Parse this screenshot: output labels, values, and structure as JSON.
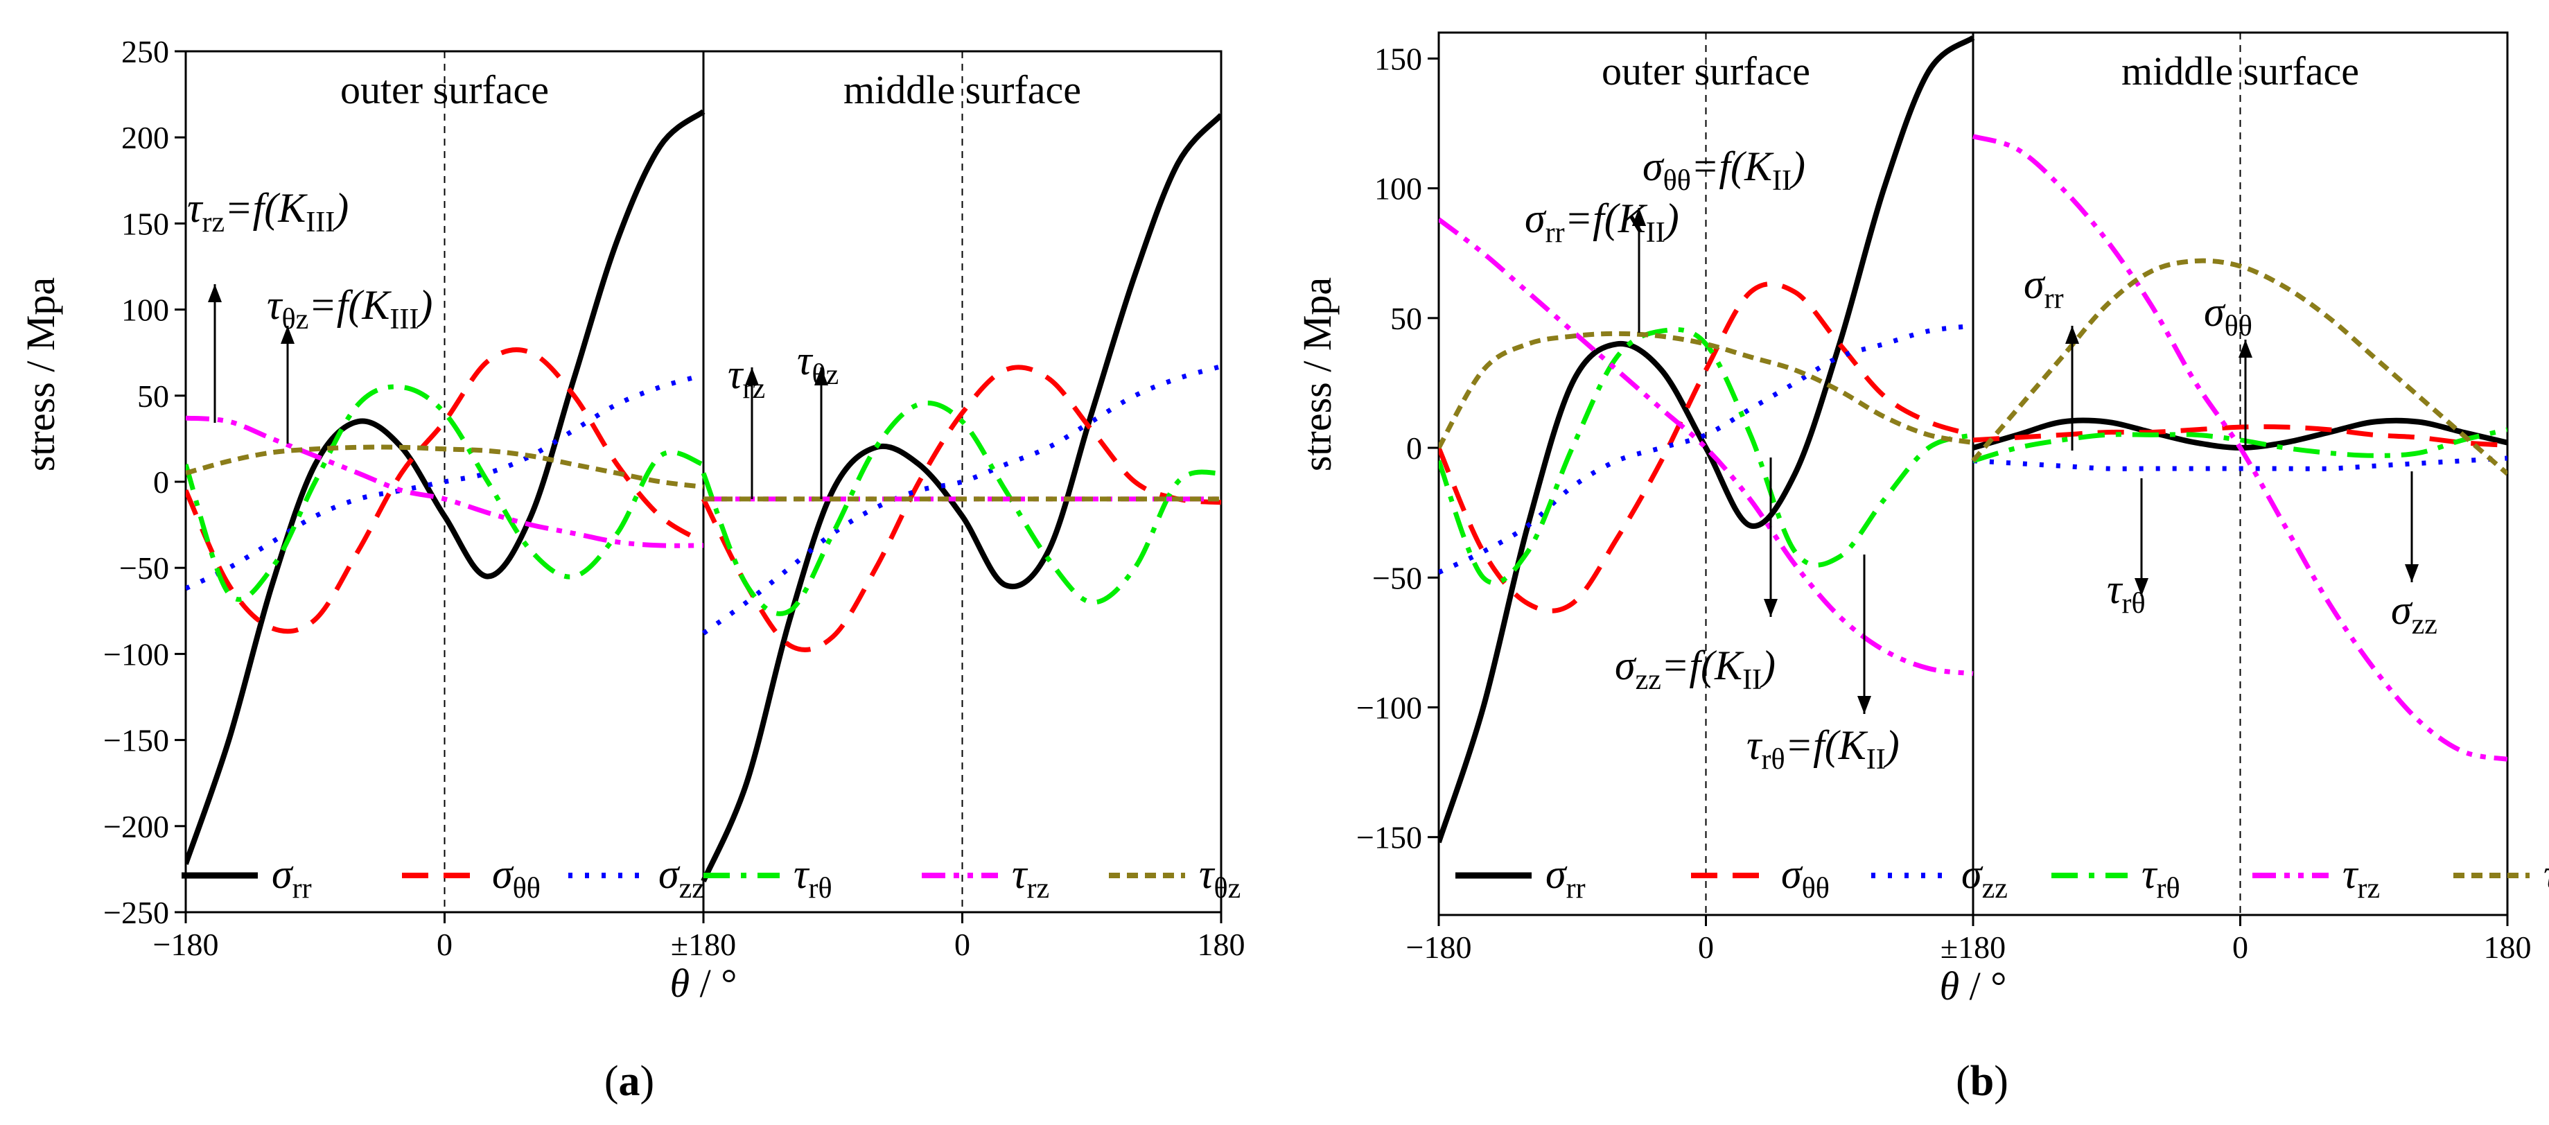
{
  "figure": {
    "panels": [
      {
        "id": "a",
        "caption": "(a)",
        "surfaces": [
          "outer surface",
          "middle surface"
        ],
        "annotations": [
          {
            "sym": "τ",
            "sub": "rz",
            "eq": "=f(K",
            "ksub": "III",
            "close": ")"
          },
          {
            "sym": "τ",
            "sub": "θz",
            "eq": "=f(K",
            "ksub": "III",
            "close": ")"
          },
          {
            "sym": "τ",
            "sub": "rz",
            "eq": "",
            "ksub": "",
            "close": ""
          },
          {
            "sym": "τ",
            "sub": "θz",
            "eq": "",
            "ksub": "",
            "close": ""
          }
        ]
      },
      {
        "id": "b",
        "caption": "(b)",
        "surfaces": [
          "outer surface",
          "middle surface"
        ],
        "annotations": [
          {
            "sym": "σ",
            "sub": "θθ",
            "eq": "=f(K",
            "ksub": "II",
            "close": ")"
          },
          {
            "sym": "σ",
            "sub": "rr",
            "eq": "=f(K",
            "ksub": "II",
            "close": ")"
          },
          {
            "sym": "σ",
            "sub": "zz",
            "eq": "=f(K",
            "ksub": "II",
            "close": ")"
          },
          {
            "sym": "τ",
            "sub": "rθ",
            "eq": "=f(K",
            "ksub": "II",
            "close": ")"
          },
          {
            "sym": "σ",
            "sub": "rr",
            "eq": "",
            "ksub": "",
            "close": ""
          },
          {
            "sym": "σ",
            "sub": "θθ",
            "eq": "",
            "ksub": "",
            "close": ""
          },
          {
            "sym": "τ",
            "sub": "rθ",
            "eq": "",
            "ksub": "",
            "close": ""
          },
          {
            "sym": "σ",
            "sub": "zz",
            "eq": "",
            "ksub": "",
            "close": ""
          }
        ]
      }
    ]
  },
  "chart_data": [
    {
      "type": "line",
      "panel": "a",
      "ylabel": "stress / Mpa",
      "xlabel_sym": "θ",
      "xlabel_unit": "/ °",
      "ylim": [
        -250,
        250
      ],
      "yticks": [
        -250,
        -200,
        -150,
        -100,
        -50,
        0,
        50,
        100,
        150,
        200,
        250
      ],
      "xticks": [
        "−180",
        "0",
        "±180",
        "0",
        "180"
      ],
      "x_segments": [
        "outer surface: θ from -180 to 180",
        "middle surface: θ from -180 to 180"
      ],
      "x": [
        -180,
        -150,
        -120,
        -90,
        -60,
        -30,
        0,
        30,
        60,
        90,
        120,
        150,
        180
      ],
      "series": [
        {
          "name": "σ",
          "sub": "rr",
          "color": "#000000",
          "dash": "solid",
          "outer": [
            -222,
            -150,
            -60,
            10,
            35,
            20,
            -20,
            -55,
            -20,
            60,
            140,
            195,
            215
          ],
          "middle": [
            -232,
            -175,
            -80,
            -5,
            20,
            10,
            -20,
            -60,
            -40,
            40,
            120,
            185,
            213
          ]
        },
        {
          "name": "σ",
          "sub": "θθ",
          "color": "#ff0000",
          "dash": "dash",
          "outer": [
            -5,
            -60,
            -85,
            -80,
            -40,
            5,
            35,
            70,
            75,
            50,
            10,
            -20,
            -35
          ],
          "middle": [
            -10,
            -60,
            -95,
            -90,
            -50,
            0,
            40,
            65,
            60,
            30,
            0,
            -10,
            -12
          ]
        },
        {
          "name": "σ",
          "sub": "zz",
          "color": "#0000ff",
          "dash": "dot",
          "outer": [
            -62,
            -50,
            -35,
            -20,
            -10,
            -5,
            0,
            5,
            15,
            30,
            45,
            55,
            62
          ],
          "middle": [
            -88,
            -70,
            -50,
            -30,
            -15,
            -5,
            0,
            10,
            20,
            35,
            50,
            60,
            67
          ]
        },
        {
          "name": "τ",
          "sub": "rθ",
          "color": "#00ee00",
          "dash": "dashdot",
          "outer": [
            10,
            -65,
            -50,
            0,
            45,
            55,
            40,
            0,
            -40,
            -55,
            -30,
            15,
            10
          ],
          "middle": [
            5,
            -60,
            -75,
            -30,
            20,
            45,
            35,
            -5,
            -45,
            -70,
            -50,
            0,
            5
          ]
        },
        {
          "name": "τ",
          "sub": "rz",
          "color": "#ff00ff",
          "dash": "dashdotdot",
          "outer": [
            37,
            35,
            25,
            15,
            5,
            -5,
            -10,
            -18,
            -25,
            -30,
            -35,
            -37,
            -37
          ],
          "middle": [
            -10,
            -10,
            -10,
            -10,
            -10,
            -10,
            -10,
            -10,
            -10,
            -10,
            -10,
            -10,
            -10
          ]
        },
        {
          "name": "τ",
          "sub": "θz",
          "color": "#8b7d1a",
          "dash": "shortdash",
          "outer": [
            5,
            12,
            17,
            19,
            20,
            20,
            19,
            18,
            15,
            10,
            5,
            0,
            -3
          ],
          "middle": [
            -10,
            -10,
            -10,
            -10,
            -10,
            -10,
            -10,
            -10,
            -10,
            -10,
            -10,
            -10,
            -10
          ]
        }
      ],
      "legend": "bottom"
    },
    {
      "type": "line",
      "panel": "b",
      "ylabel": "stress / Mpa",
      "xlabel_sym": "θ",
      "xlabel_unit": "/ °",
      "ylim": [
        -180,
        160
      ],
      "yticks": [
        -150,
        -100,
        -50,
        0,
        50,
        100,
        150
      ],
      "xticks": [
        "−180",
        "0",
        "±180",
        "0",
        "180"
      ],
      "x": [
        -180,
        -150,
        -120,
        -90,
        -60,
        -30,
        0,
        30,
        60,
        90,
        120,
        150,
        180
      ],
      "series": [
        {
          "name": "σ",
          "sub": "rr",
          "color": "#000000",
          "dash": "solid",
          "outer": [
            -152,
            -100,
            -30,
            25,
            40,
            30,
            0,
            -30,
            -10,
            40,
            100,
            145,
            158
          ],
          "middle": [
            0,
            5,
            10,
            10,
            6,
            2,
            0,
            2,
            6,
            10,
            10,
            6,
            2
          ]
        },
        {
          "name": "σ",
          "sub": "θθ",
          "color": "#ff0000",
          "dash": "dash",
          "outer": [
            0,
            -40,
            -60,
            -60,
            -35,
            -5,
            30,
            60,
            60,
            40,
            20,
            10,
            5
          ],
          "middle": [
            3,
            4,
            5,
            6,
            6,
            7,
            8,
            8,
            7,
            5,
            4,
            2,
            1
          ]
        },
        {
          "name": "σ",
          "sub": "zz",
          "color": "#0000ff",
          "dash": "dot",
          "outer": [
            -48,
            -40,
            -30,
            -15,
            -5,
            0,
            5,
            15,
            25,
            35,
            40,
            45,
            47
          ],
          "middle": [
            -5,
            -6,
            -7,
            -8,
            -8,
            -8,
            -8,
            -8,
            -8,
            -7,
            -6,
            -5,
            -4
          ]
        },
        {
          "name": "τ",
          "sub": "rθ",
          "color": "#00ee00",
          "dash": "dashdot",
          "outer": [
            -5,
            -50,
            -40,
            0,
            35,
            45,
            40,
            5,
            -40,
            -42,
            -20,
            0,
            5
          ],
          "middle": [
            -5,
            0,
            3,
            5,
            5,
            5,
            3,
            0,
            -2,
            -3,
            -2,
            3,
            7
          ]
        },
        {
          "name": "τ",
          "sub": "rz",
          "color": "#ff00ff",
          "dash": "dashdotdot",
          "outer": [
            88,
            75,
            60,
            45,
            30,
            15,
            0,
            -20,
            -45,
            -65,
            -78,
            -85,
            -87
          ],
          "middle": [
            120,
            115,
            100,
            80,
            55,
            25,
            0,
            -30,
            -60,
            -85,
            -105,
            -117,
            -120
          ]
        },
        {
          "name": "τ",
          "sub": "θz",
          "color": "#8b7d1a",
          "dash": "shortdash",
          "outer": [
            0,
            30,
            40,
            43,
            44,
            43,
            40,
            35,
            30,
            22,
            12,
            5,
            2
          ],
          "middle": [
            -5,
            15,
            35,
            55,
            68,
            72,
            70,
            62,
            50,
            35,
            20,
            5,
            -10
          ]
        }
      ],
      "legend": "bottom"
    }
  ]
}
